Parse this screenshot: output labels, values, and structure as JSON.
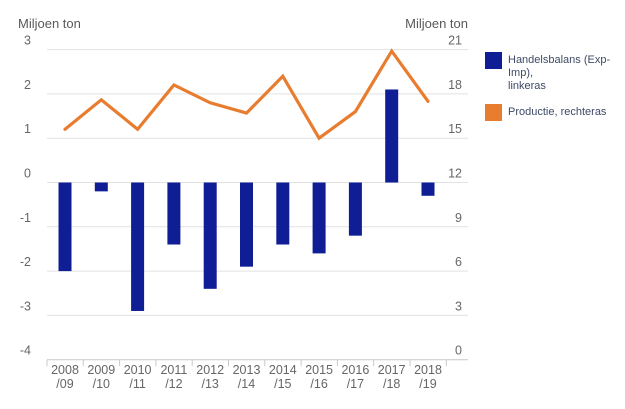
{
  "chart_data": {
    "type": "bar",
    "subtype": "combo-bar-line-dual-axis",
    "categories": [
      "2008/09",
      "2009/10",
      "2010/11",
      "2011/12",
      "2012/13",
      "2013/14",
      "2014/15",
      "2015/16",
      "2016/17",
      "2017/18",
      "2018/19"
    ],
    "x_tick_labels": [
      {
        "line1": "2008",
        "line2": "/09"
      },
      {
        "line1": "2009",
        "line2": "/10"
      },
      {
        "line1": "2010",
        "line2": "/11"
      },
      {
        "line1": "2011",
        "line2": "/12"
      },
      {
        "line1": "2012",
        "line2": "/13"
      },
      {
        "line1": "2013",
        "line2": "/14"
      },
      {
        "line1": "2014",
        "line2": "/15"
      },
      {
        "line1": "2015",
        "line2": "/16"
      },
      {
        "line1": "2016",
        "line2": "/17"
      },
      {
        "line1": "2017",
        "line2": "/18"
      },
      {
        "line1": "2018",
        "line2": "/19"
      }
    ],
    "series": [
      {
        "name": "Handelsbalans (Exp-Imp), linkeras",
        "type": "bar",
        "axis": "left",
        "color": "#101e96",
        "values": [
          -2.0,
          -0.2,
          -2.9,
          -1.4,
          -2.4,
          -1.9,
          -1.4,
          -1.6,
          -1.2,
          2.1,
          -0.3
        ]
      },
      {
        "name": "Productie, rechteras",
        "type": "line",
        "axis": "right",
        "color": "#e87c2f",
        "values": [
          15.6,
          17.6,
          15.6,
          18.6,
          17.4,
          16.7,
          19.2,
          15.0,
          16.8,
          20.9,
          17.5
        ]
      }
    ],
    "left_axis": {
      "title": "Miljoen ton",
      "min": -4,
      "max": 3,
      "step": 1,
      "ticks": [
        "3",
        "2",
        "1",
        "0",
        "-1",
        "-2",
        "-3",
        "-4"
      ]
    },
    "right_axis": {
      "title": "Miljoen ton",
      "min": 0,
      "max": 21,
      "step": 3,
      "ticks": [
        "21",
        "18",
        "15",
        "12",
        "9",
        "6",
        "3",
        "0"
      ]
    },
    "grid": true,
    "legend_position": "top-right"
  },
  "legend": {
    "items": [
      {
        "line1": "Handelsbalans (Exp-Imp),",
        "line2": "linkeras"
      },
      {
        "line1": "Productie, rechteras",
        "line2": ""
      }
    ]
  },
  "colors": {
    "bar": "#101e96",
    "line": "#e87c2f",
    "gridline": "#e2e2e2",
    "axis_line": "#c9c9c9",
    "tick_label": "#666666",
    "axis_title": "#595959",
    "legend_text": "#3d4a66",
    "background": "#ffffff"
  }
}
